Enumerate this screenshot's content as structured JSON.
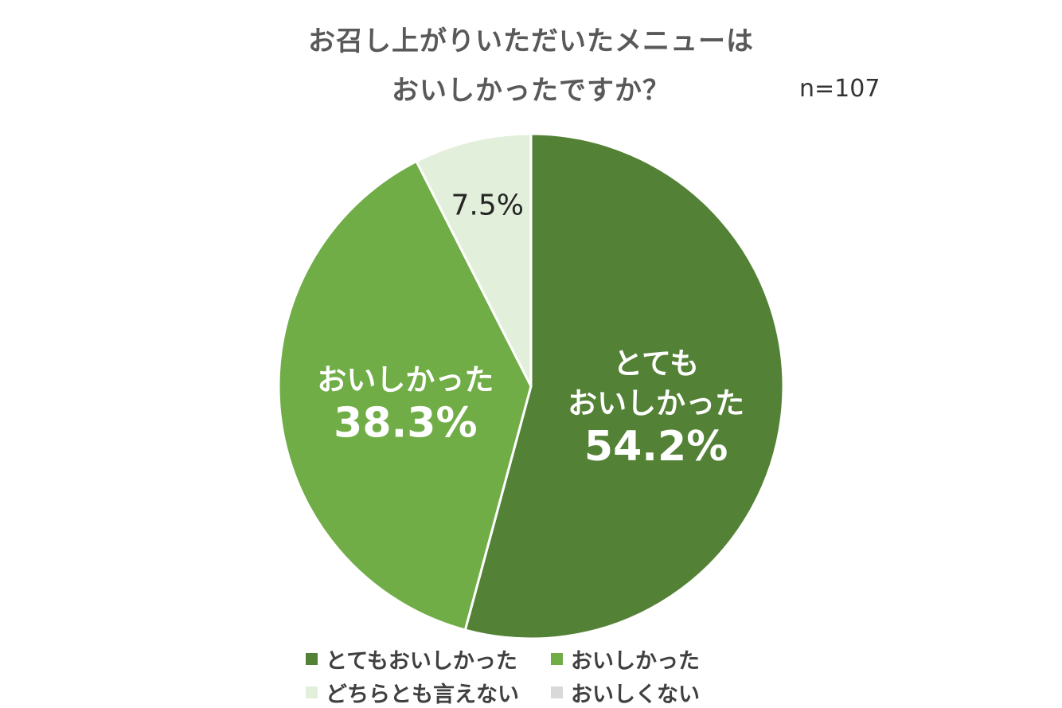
{
  "title": {
    "line1": "お召し上がりいただいたメニューは",
    "line2": "おいしかったですか？"
  },
  "sample_size": "n=107",
  "colors": {
    "very_good": "#538135",
    "good": "#70ad47",
    "neutral": "#e2efda",
    "not_good": "#d9d9d9",
    "title": "#595959"
  },
  "chart_data": {
    "type": "pie",
    "title": "お召し上がりいただいたメニューは おいしかったですか？",
    "annotation": "n=107",
    "start_angle": "12 o'clock",
    "direction": "clockwise",
    "slices": [
      {
        "label": "とてもおいしかった",
        "value": 54.2,
        "data_label_lines": [
          "とても",
          "おいしかった"
        ],
        "data_label_value": "54.2%",
        "color": "#538135"
      },
      {
        "label": "おいしかった",
        "value": 38.3,
        "data_label_lines": [
          "おいしかった"
        ],
        "data_label_value": "38.3%",
        "color": "#70ad47"
      },
      {
        "label": "どちらとも言えない",
        "value": 7.5,
        "data_label_lines": [],
        "data_label_value": "7.5%",
        "color": "#e2efda"
      },
      {
        "label": "おいしくない",
        "value": 0,
        "data_label_lines": [],
        "data_label_value": "",
        "color": "#d9d9d9"
      }
    ],
    "legend": {
      "placement": "bottom",
      "items": [
        "とてもおいしかった",
        "おいしかった",
        "どちらとも言えない",
        "おいしくない"
      ]
    }
  }
}
